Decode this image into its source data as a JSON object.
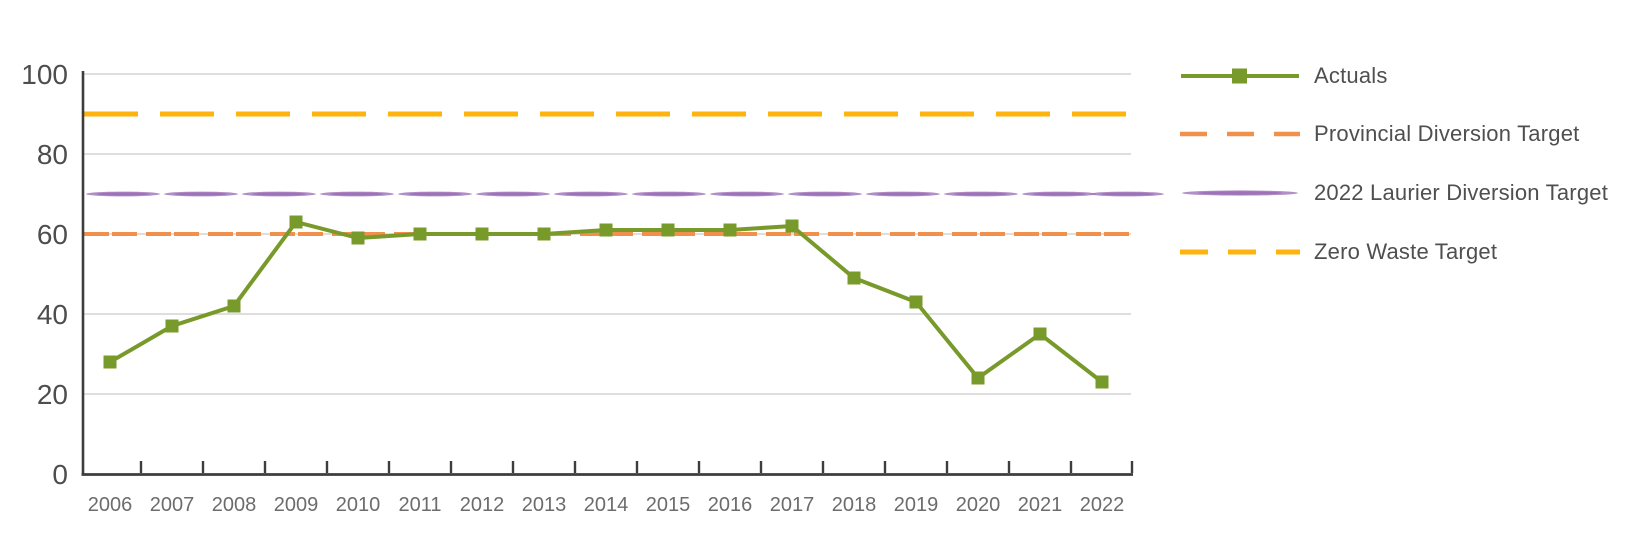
{
  "chart_data": {
    "type": "line",
    "title": "",
    "xlabel": "",
    "ylabel": "",
    "x": [
      "2006",
      "2007",
      "2008",
      "2009",
      "2010",
      "2011",
      "2012",
      "2013",
      "2014",
      "2015",
      "2016",
      "2017",
      "2018",
      "2019",
      "2020",
      "2021",
      "2022"
    ],
    "yticks": [
      0,
      20,
      40,
      60,
      80,
      100
    ],
    "ylim": [
      0,
      100
    ],
    "grid": true,
    "legend_position": "right",
    "colors": {
      "axis": "#3d3d3d",
      "grid": "#c9c9c9",
      "y_label_text": "#4d4d4d",
      "x_label_text": "#6c6c6c",
      "legend_text": "#4f4f4f"
    },
    "series": [
      {
        "name": "Actuals",
        "kind": "data",
        "style": "solid-marker",
        "color": "#789a2b",
        "values": [
          28,
          37,
          42,
          63,
          59,
          60,
          60,
          60,
          61,
          61,
          61,
          62,
          49,
          43,
          24,
          35,
          23
        ]
      },
      {
        "name": "Provincial Diversion Target",
        "kind": "reference",
        "style": "dashed",
        "color": "#f0904a",
        "value": 60
      },
      {
        "name": "2022 Laurier Diversion Target",
        "kind": "reference",
        "style": "tapered",
        "color": "#9e72b8",
        "value": 70
      },
      {
        "name": "Zero Waste Target",
        "kind": "reference",
        "style": "long-dash",
        "color": "#ffb30e",
        "value": 90
      }
    ]
  }
}
